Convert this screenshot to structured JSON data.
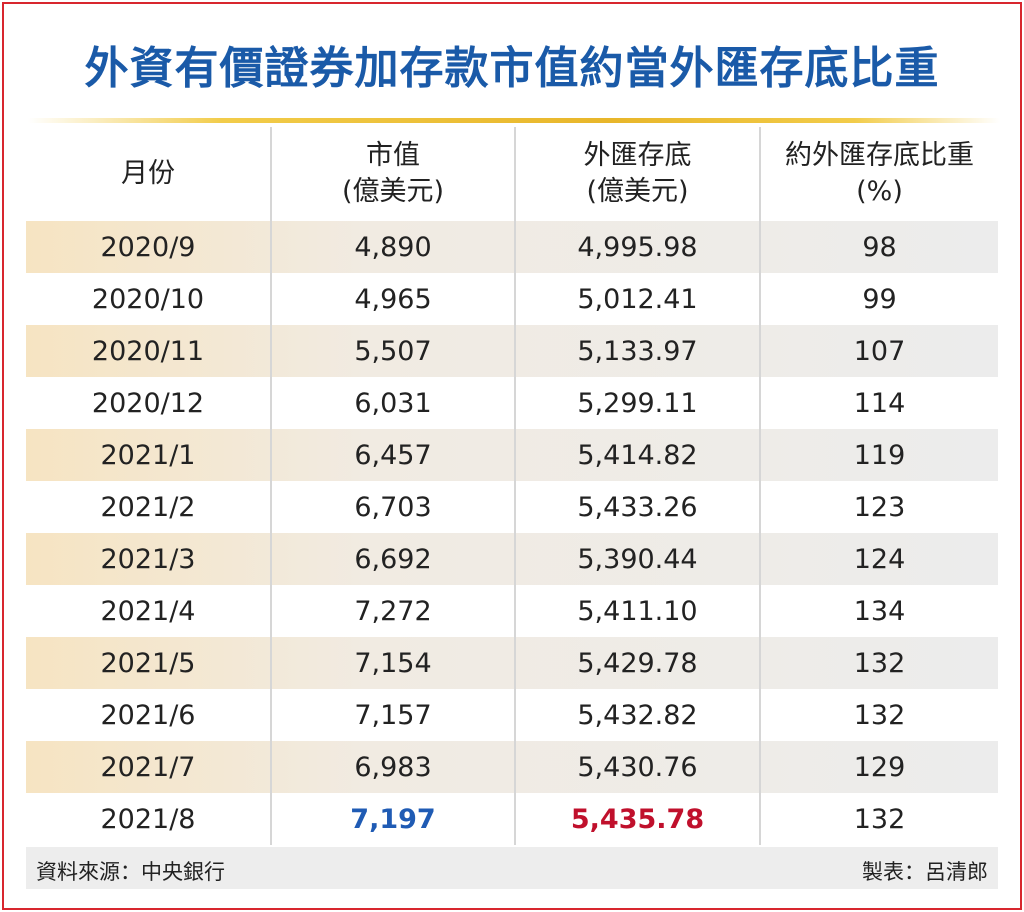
{
  "title": "外資有價證券加存款市值約當外匯存底比重",
  "table": {
    "headers": [
      [
        "月份"
      ],
      [
        "市值",
        "(億美元)"
      ],
      [
        "外匯存底",
        "(億美元)"
      ],
      [
        "約外匯存底比重",
        "(%)"
      ]
    ],
    "rows": [
      [
        "2020/9",
        "4,890",
        "4,995.98",
        "98"
      ],
      [
        "2020/10",
        "4,965",
        "5,012.41",
        "99"
      ],
      [
        "2020/11",
        "5,507",
        "5,133.97",
        "107"
      ],
      [
        "2020/12",
        "6,031",
        "5,299.11",
        "114"
      ],
      [
        "2021/1",
        "6,457",
        "5,414.82",
        "119"
      ],
      [
        "2021/2",
        "6,703",
        "5,433.26",
        "123"
      ],
      [
        "2021/3",
        "6,692",
        "5,390.44",
        "124"
      ],
      [
        "2021/4",
        "7,272",
        "5,411.10",
        "134"
      ],
      [
        "2021/5",
        "7,154",
        "5,429.78",
        "132"
      ],
      [
        "2021/6",
        "7,157",
        "5,432.82",
        "132"
      ],
      [
        "2021/7",
        "6,983",
        "5,430.76",
        "129"
      ],
      [
        "2021/8",
        "7,197",
        "5,435.78",
        "132"
      ]
    ]
  },
  "footer": {
    "source": "資料來源：中央銀行",
    "maker": "製表：呂清郎"
  }
}
